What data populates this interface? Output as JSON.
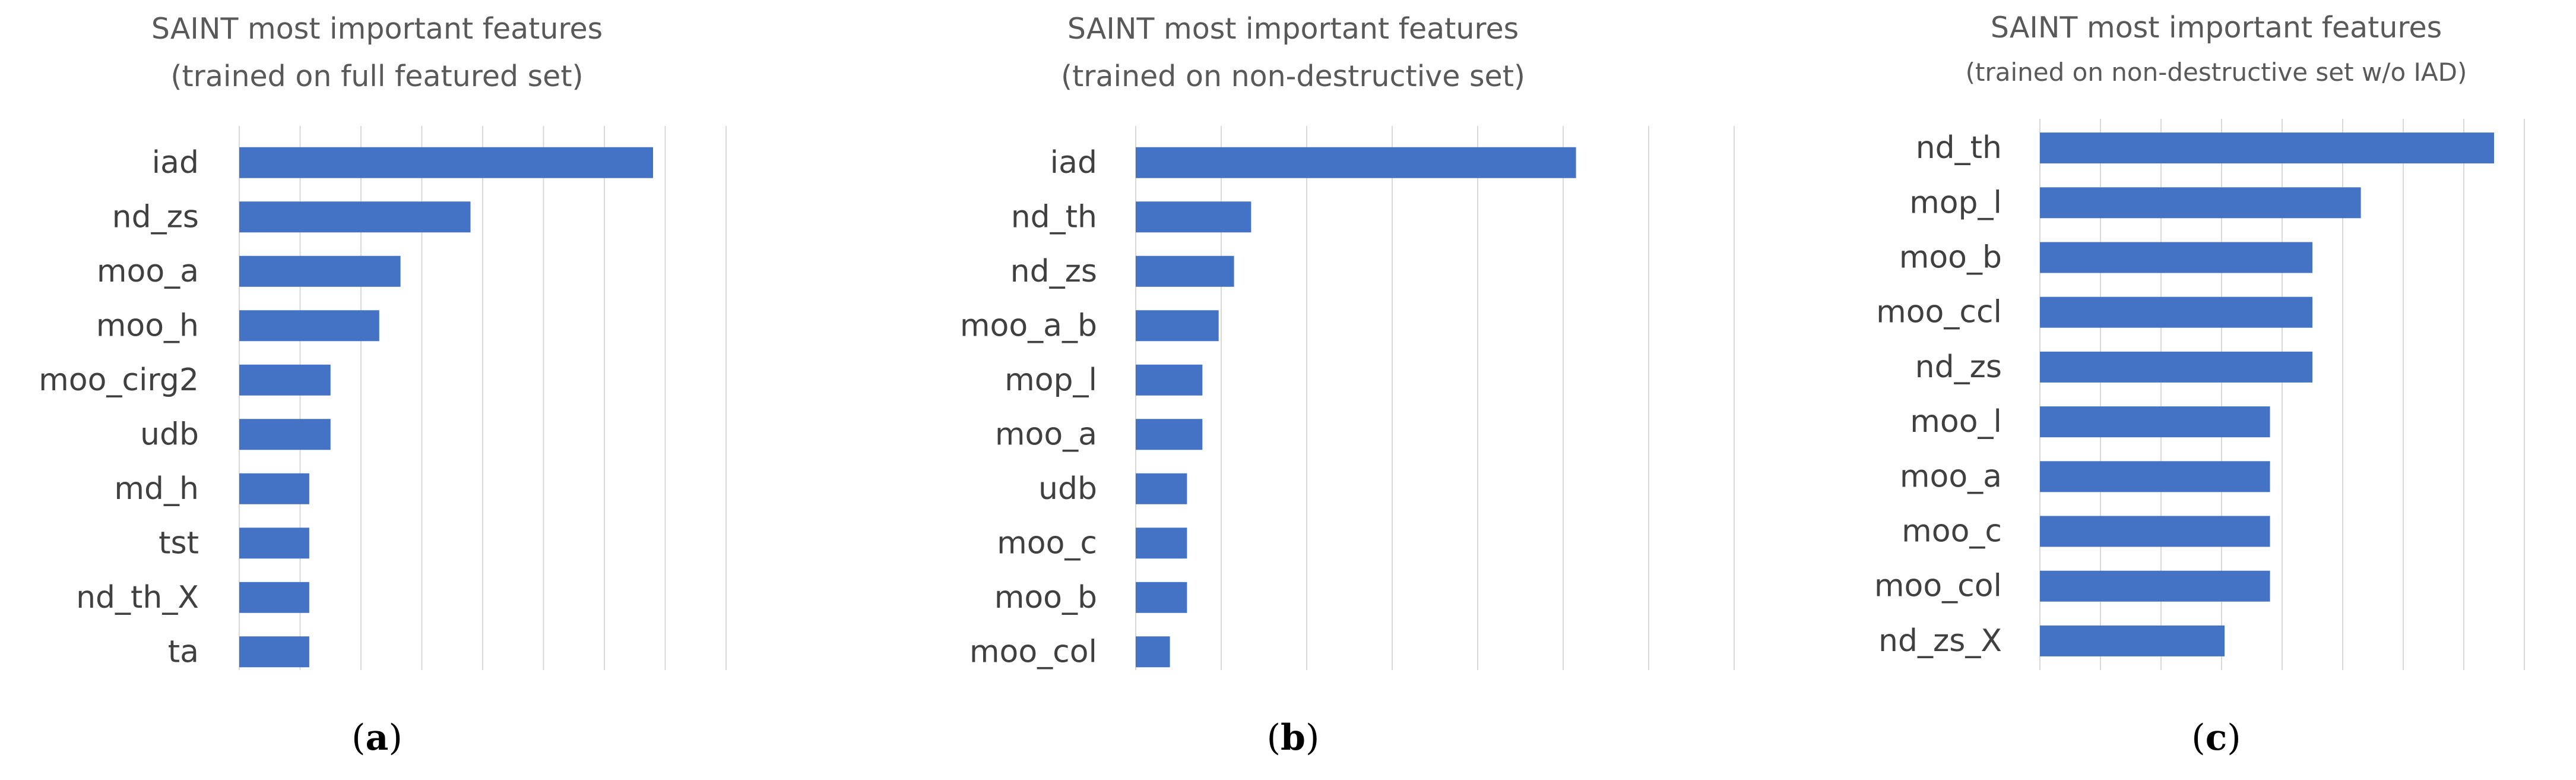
{
  "figure": {
    "panel_labels": [
      "(a)",
      "(b)",
      "(c)"
    ]
  },
  "colors": {
    "bar": "#4472c4",
    "gridline": "#d9d9d9",
    "title_text": "#595959",
    "tick_text": "#404040"
  },
  "chart_data": [
    {
      "type": "bar",
      "orientation": "horizontal",
      "title": "SAINT most important features",
      "subtitle": "(trained on full featured set)",
      "categories": [
        "iad",
        "nd_zs",
        "moo_a",
        "moo_h",
        "moo_cirg2",
        "udb",
        "md_h",
        "tst",
        "nd_th_X",
        "ta"
      ],
      "values": [
        6.8,
        3.8,
        2.65,
        2.3,
        1.5,
        1.5,
        1.15,
        1.15,
        1.15,
        1.15
      ],
      "xlim": [
        0,
        8
      ],
      "x_tick_labels_shown": false,
      "grid": "vertical",
      "legend": "none"
    },
    {
      "type": "bar",
      "orientation": "horizontal",
      "title": "SAINT most important features",
      "subtitle": "(trained on non-destructive set)",
      "categories": [
        "iad",
        "nd_th",
        "nd_zs",
        "moo_a_b",
        "mop_l",
        "moo_a",
        "udb",
        "moo_c",
        "moo_b",
        "moo_col"
      ],
      "values": [
        5.15,
        1.35,
        1.15,
        0.97,
        0.78,
        0.78,
        0.6,
        0.6,
        0.6,
        0.4
      ],
      "xlim": [
        0,
        7
      ],
      "x_tick_labels_shown": false,
      "grid": "vertical",
      "legend": "none"
    },
    {
      "type": "bar",
      "orientation": "horizontal",
      "title": "SAINT most important features",
      "subtitle": "(trained on non-destructive set w/o IAD)",
      "categories": [
        "nd_th",
        "mop_l",
        "moo_b",
        "moo_ccl",
        "nd_zs",
        "moo_l",
        "moo_a",
        "moo_c",
        "moo_col",
        "nd_zs_X"
      ],
      "values": [
        7.5,
        5.3,
        4.5,
        4.5,
        4.5,
        3.8,
        3.8,
        3.8,
        3.8,
        3.05
      ],
      "xlim": [
        0,
        8
      ],
      "x_tick_labels_shown": false,
      "grid": "vertical",
      "legend": "none"
    }
  ]
}
